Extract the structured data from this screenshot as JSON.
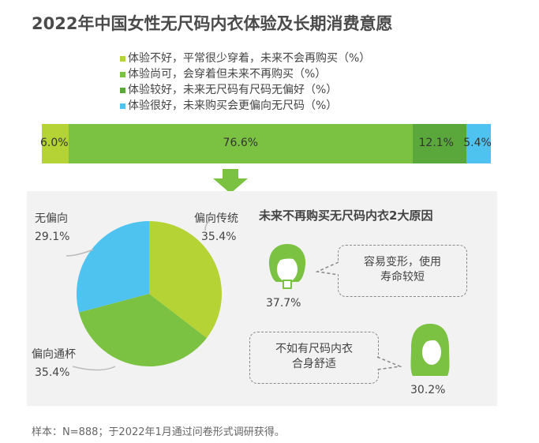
{
  "title": "2022年中国女性无尺码内衣体验及长期消费意愿",
  "colors": {
    "c1": "#b5d334",
    "c2": "#7cc242",
    "c3": "#5aa83c",
    "c4": "#4fc3f0",
    "panel": "#f2f2f2",
    "arrow": "#7cc242"
  },
  "legend": [
    {
      "label": "体验不好，平常很少穿着，未来不会再购买（%）",
      "color": "#b5d334"
    },
    {
      "label": "体验尚可，会穿着但未来不再购买（%）",
      "color": "#7cc242"
    },
    {
      "label": "体验较好，未来无尺码有尺码无偏好（%）",
      "color": "#5aa83c"
    },
    {
      "label": "体验很好，未来购买会更偏向无尺码（%）",
      "color": "#4fc3f0"
    }
  ],
  "chart_data": [
    {
      "type": "bar",
      "orientation": "horizontal-stacked-100",
      "series": [
        {
          "name": "体验不好，平常很少穿着，未来不会再购买（%）",
          "value": 6.0,
          "label": "6.0%"
        },
        {
          "name": "体验尚可，会穿着但未来不再购买（%）",
          "value": 76.6,
          "label": "76.6%"
        },
        {
          "name": "体验较好，未来无尺码有尺码无偏好（%）",
          "value": 12.1,
          "label": "12.1%"
        },
        {
          "name": "体验很好，未来购买会更偏向无尺码（%）",
          "value": 5.4,
          "label": "5.4%"
        }
      ]
    },
    {
      "type": "pie",
      "slices": [
        {
          "name": "偏向传统",
          "value": 35.4,
          "label": "35.4%",
          "color": "#b5d334"
        },
        {
          "name": "偏向通杯",
          "value": 35.4,
          "label": "35.4%",
          "color": "#7cc242"
        },
        {
          "name": "无偏向",
          "value": 29.1,
          "label": "29.1%",
          "color": "#4fc3f0"
        }
      ]
    }
  ],
  "reasons": {
    "title": "未来不再购买无尺码内衣2大原因",
    "items": [
      {
        "text_lines": [
          "容易变形，使用",
          "寿命较短"
        ],
        "pct": "37.7%",
        "icon": "short-hair-woman-icon"
      },
      {
        "text_lines": [
          "不如有尺码内衣",
          "合身舒适"
        ],
        "pct": "30.2%",
        "icon": "long-hair-woman-icon"
      }
    ]
  },
  "footer": "样本：N=888；于2022年1月通过问卷形式调研获得。"
}
